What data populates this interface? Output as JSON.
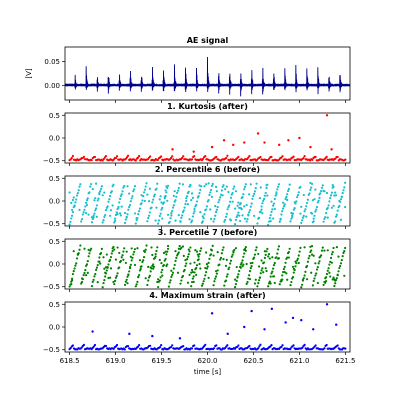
{
  "chart_data": [
    {
      "type": "line",
      "title": "AE signal",
      "ylabel": "[V]",
      "ylim": [
        -0.03,
        0.08
      ],
      "yticks": [
        0.0,
        0.05
      ],
      "ytick_labels": [
        "0.00",
        "0.05"
      ],
      "xlim": [
        618.45,
        621.55
      ],
      "color": "#00008b",
      "burst_interval_s": 0.12,
      "bursts": [
        {
          "t": 618.56,
          "peak": 0.03
        },
        {
          "t": 618.68,
          "peak": 0.045
        },
        {
          "t": 618.8,
          "peak": 0.035
        },
        {
          "t": 618.92,
          "peak": 0.05
        },
        {
          "t": 619.04,
          "peak": 0.04
        },
        {
          "t": 619.16,
          "peak": 0.045
        },
        {
          "t": 619.28,
          "peak": 0.04
        },
        {
          "t": 619.4,
          "peak": 0.05
        },
        {
          "t": 619.52,
          "peak": 0.05
        },
        {
          "t": 619.64,
          "peak": 0.06
        },
        {
          "t": 619.76,
          "peak": 0.05
        },
        {
          "t": 619.88,
          "peak": 0.055
        },
        {
          "t": 620.0,
          "peak": 0.07
        },
        {
          "t": 620.12,
          "peak": 0.05
        },
        {
          "t": 620.24,
          "peak": 0.055
        },
        {
          "t": 620.36,
          "peak": 0.06
        },
        {
          "t": 620.48,
          "peak": 0.055
        },
        {
          "t": 620.6,
          "peak": 0.055
        },
        {
          "t": 620.72,
          "peak": 0.055
        },
        {
          "t": 620.84,
          "peak": 0.055
        },
        {
          "t": 620.96,
          "peak": 0.055
        },
        {
          "t": 621.08,
          "peak": 0.055
        },
        {
          "t": 621.2,
          "peak": 0.055
        },
        {
          "t": 621.32,
          "peak": 0.05
        },
        {
          "t": 621.44,
          "peak": 0.05
        }
      ]
    },
    {
      "type": "scatter",
      "title": "1. Kurtosis (after)",
      "ylim": [
        -0.55,
        0.55
      ],
      "yticks": [
        -0.5,
        0.0,
        0.5
      ],
      "ytick_labels": [
        "−0.5",
        "0.0",
        "0.5"
      ],
      "xlim": [
        618.45,
        621.55
      ],
      "color": "#ff0000",
      "pattern": "baseline",
      "outliers": [
        {
          "x": 619.62,
          "y": -0.25
        },
        {
          "x": 619.85,
          "y": -0.3
        },
        {
          "x": 620.05,
          "y": -0.2
        },
        {
          "x": 620.18,
          "y": -0.05
        },
        {
          "x": 620.28,
          "y": -0.15
        },
        {
          "x": 620.4,
          "y": -0.1
        },
        {
          "x": 620.55,
          "y": 0.1
        },
        {
          "x": 620.62,
          "y": -0.1
        },
        {
          "x": 620.78,
          "y": -0.15
        },
        {
          "x": 620.88,
          "y": -0.05
        },
        {
          "x": 621.0,
          "y": 0.0
        },
        {
          "x": 621.12,
          "y": -0.2
        },
        {
          "x": 621.3,
          "y": 0.5
        },
        {
          "x": 621.35,
          "y": -0.25
        }
      ]
    },
    {
      "type": "scatter",
      "title": "2. Percentile 6 (before)",
      "ylim": [
        -0.55,
        0.55
      ],
      "yticks": [
        -0.5,
        0.0,
        0.5
      ],
      "ytick_labels": [
        "−0.5",
        "0.0",
        "0.5"
      ],
      "xlim": [
        618.45,
        621.55
      ],
      "color": "#17becf",
      "pattern": "ramp"
    },
    {
      "type": "scatter",
      "title": "3. Percetile 7 (before)",
      "ylim": [
        -0.55,
        0.55
      ],
      "yticks": [
        -0.5,
        0.0,
        0.5
      ],
      "ytick_labels": [
        "−0.5",
        "0.0",
        "0.5"
      ],
      "xlim": [
        618.45,
        621.55
      ],
      "color": "#008000",
      "pattern": "ramp"
    },
    {
      "type": "scatter",
      "title": "4. Maximum strain (after)",
      "ylim": [
        -0.55,
        0.55
      ],
      "yticks": [
        -0.5,
        0.0,
        0.5
      ],
      "ytick_labels": [
        "−0.5",
        "0.0",
        "0.5"
      ],
      "xlim": [
        618.45,
        621.55
      ],
      "xticks": [
        618.5,
        619.0,
        619.5,
        620.0,
        620.5,
        621.0,
        621.5
      ],
      "xtick_labels": [
        "618.5",
        "619.0",
        "619.5",
        "620.0",
        "620.5",
        "621.0",
        "621.5"
      ],
      "xlabel": "time [s]",
      "color": "#0000ff",
      "pattern": "baseline",
      "outliers": [
        {
          "x": 618.75,
          "y": -0.1
        },
        {
          "x": 619.15,
          "y": -0.15
        },
        {
          "x": 619.4,
          "y": -0.2
        },
        {
          "x": 619.7,
          "y": -0.25
        },
        {
          "x": 620.05,
          "y": 0.3
        },
        {
          "x": 620.22,
          "y": -0.15
        },
        {
          "x": 620.4,
          "y": 0.0
        },
        {
          "x": 620.48,
          "y": 0.35
        },
        {
          "x": 620.62,
          "y": -0.05
        },
        {
          "x": 620.7,
          "y": 0.4
        },
        {
          "x": 620.85,
          "y": 0.1
        },
        {
          "x": 620.93,
          "y": 0.2
        },
        {
          "x": 621.02,
          "y": 0.15
        },
        {
          "x": 621.15,
          "y": -0.05
        },
        {
          "x": 621.3,
          "y": 0.5
        },
        {
          "x": 621.4,
          "y": 0.05
        }
      ]
    }
  ]
}
